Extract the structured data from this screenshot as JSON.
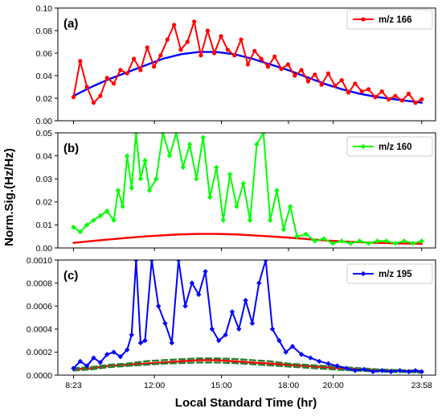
{
  "figure": {
    "xlabel": "Local Standard Time (hr)",
    "ylabel": "Norm.Sig.(Hz/Hz)",
    "x_ticks": [
      {
        "value": 0,
        "label": "8:23"
      },
      {
        "value": 3.62,
        "label": "12:00"
      },
      {
        "value": 6.62,
        "label": "15:00"
      },
      {
        "value": 9.62,
        "label": "18:00"
      },
      {
        "value": 11.62,
        "label": "20:00"
      },
      {
        "value": 15.58,
        "label": "23:58"
      }
    ],
    "xlim": [
      -0.7,
      16.2
    ]
  },
  "chart_data": [
    {
      "type": "line",
      "panel_label": "(a)",
      "ylim": [
        0,
        0.1
      ],
      "yticks": [
        "0.00",
        "0.02",
        "0.04",
        "0.06",
        "0.08",
        "0.10"
      ],
      "legend": "top-right",
      "grid": false,
      "series": [
        {
          "name": "m/z 166",
          "color": "#ff0000",
          "marker": "circle",
          "x": [
            0.0,
            0.3,
            0.6,
            0.9,
            1.2,
            1.5,
            1.8,
            2.1,
            2.4,
            2.7,
            3.0,
            3.3,
            3.6,
            3.9,
            4.2,
            4.5,
            4.8,
            5.1,
            5.4,
            5.7,
            6.0,
            6.3,
            6.6,
            6.9,
            7.2,
            7.5,
            7.8,
            8.1,
            8.4,
            8.7,
            9.0,
            9.3,
            9.6,
            9.9,
            10.2,
            10.5,
            10.8,
            11.1,
            11.4,
            11.7,
            12.0,
            12.3,
            12.6,
            12.9,
            13.2,
            13.5,
            13.8,
            14.1,
            14.4,
            14.7,
            15.0,
            15.3,
            15.58
          ],
          "values": [
            0.021,
            0.053,
            0.03,
            0.016,
            0.022,
            0.038,
            0.033,
            0.045,
            0.042,
            0.055,
            0.045,
            0.065,
            0.048,
            0.058,
            0.072,
            0.085,
            0.063,
            0.07,
            0.088,
            0.058,
            0.08,
            0.06,
            0.075,
            0.063,
            0.058,
            0.072,
            0.05,
            0.062,
            0.055,
            0.048,
            0.057,
            0.046,
            0.05,
            0.04,
            0.045,
            0.035,
            0.041,
            0.032,
            0.042,
            0.031,
            0.036,
            0.025,
            0.033,
            0.026,
            0.028,
            0.021,
            0.026,
            0.019,
            0.022,
            0.018,
            0.024,
            0.016,
            0.019
          ]
        },
        {
          "name": "",
          "color": "#0000ff",
          "style": "fit",
          "x": [
            0.0,
            0.8,
            1.6,
            2.4,
            3.2,
            4.0,
            4.8,
            5.6,
            6.4,
            7.2,
            8.0,
            8.8,
            9.6,
            10.4,
            11.2,
            12.0,
            12.8,
            13.6,
            14.4,
            15.2,
            15.58
          ],
          "values": [
            0.022,
            0.03,
            0.037,
            0.043,
            0.049,
            0.055,
            0.059,
            0.061,
            0.061,
            0.059,
            0.055,
            0.05,
            0.045,
            0.039,
            0.033,
            0.028,
            0.024,
            0.021,
            0.019,
            0.017,
            0.016
          ]
        }
      ]
    },
    {
      "type": "line",
      "panel_label": "(b)",
      "ylim": [
        0,
        0.05
      ],
      "yticks": [
        "0.00",
        "0.01",
        "0.02",
        "0.03",
        "0.04",
        "0.05"
      ],
      "legend": "top-right",
      "grid": false,
      "series": [
        {
          "name": "m/z 160",
          "color": "#00ff00",
          "marker": "diamond",
          "x": [
            0.0,
            0.3,
            0.6,
            0.9,
            1.2,
            1.5,
            1.8,
            2.0,
            2.2,
            2.4,
            2.6,
            2.8,
            3.0,
            3.2,
            3.4,
            3.7,
            4.0,
            4.3,
            4.6,
            4.9,
            5.2,
            5.5,
            5.8,
            6.1,
            6.4,
            6.7,
            7.0,
            7.3,
            7.6,
            7.9,
            8.2,
            8.5,
            8.8,
            9.1,
            9.4,
            9.7,
            10.0,
            10.4,
            10.8,
            11.2,
            11.6,
            12.0,
            12.4,
            12.8,
            13.2,
            13.6,
            14.0,
            14.4,
            14.8,
            15.2,
            15.58
          ],
          "values": [
            0.009,
            0.007,
            0.01,
            0.012,
            0.014,
            0.016,
            0.012,
            0.025,
            0.018,
            0.04,
            0.026,
            0.05,
            0.03,
            0.038,
            0.025,
            0.03,
            0.05,
            0.04,
            0.05,
            0.035,
            0.045,
            0.03,
            0.048,
            0.022,
            0.035,
            0.012,
            0.032,
            0.018,
            0.028,
            0.012,
            0.045,
            0.05,
            0.012,
            0.025,
            0.008,
            0.018,
            0.005,
            0.006,
            0.003,
            0.004,
            0.002,
            0.003,
            0.002,
            0.003,
            0.002,
            0.003,
            0.003,
            0.002,
            0.003,
            0.002,
            0.003
          ]
        },
        {
          "name": "",
          "color": "#ff0000",
          "style": "fit",
          "x": [
            0.0,
            0.8,
            1.6,
            2.4,
            3.2,
            4.0,
            4.8,
            5.6,
            6.4,
            7.2,
            8.0,
            8.8,
            9.6,
            10.4,
            11.2,
            12.0,
            12.8,
            13.6,
            14.4,
            15.2,
            15.58
          ],
          "values": [
            0.0022,
            0.003,
            0.0037,
            0.0044,
            0.005,
            0.0055,
            0.0059,
            0.0061,
            0.0061,
            0.0059,
            0.0055,
            0.005,
            0.0045,
            0.0039,
            0.0033,
            0.0028,
            0.0025,
            0.0022,
            0.002,
            0.0019,
            0.0018
          ]
        }
      ]
    },
    {
      "type": "line",
      "panel_label": "(c)",
      "ylim": [
        0,
        0.001
      ],
      "yticks": [
        "0.0000",
        "0.0002",
        "0.0004",
        "0.0006",
        "0.0008",
        "0.0010"
      ],
      "legend": "top-right",
      "grid": false,
      "series": [
        {
          "name": "m/z 195",
          "color": "#0000ff",
          "marker": "diamond",
          "x": [
            0.0,
            0.3,
            0.6,
            0.9,
            1.2,
            1.5,
            1.8,
            2.1,
            2.4,
            2.6,
            2.8,
            3.0,
            3.2,
            3.5,
            3.8,
            4.1,
            4.4,
            4.7,
            5.0,
            5.3,
            5.6,
            5.9,
            6.2,
            6.5,
            6.8,
            7.1,
            7.4,
            7.7,
            8.0,
            8.3,
            8.6,
            8.9,
            9.2,
            9.5,
            9.8,
            10.2,
            10.6,
            11.0,
            11.4,
            11.8,
            12.2,
            12.6,
            13.0,
            13.4,
            13.8,
            14.2,
            14.6,
            15.0,
            15.3,
            15.58
          ],
          "values": [
            6e-05,
            0.00012,
            8e-05,
            0.00015,
            0.00011,
            0.00018,
            0.0002,
            0.00016,
            0.00022,
            0.00035,
            0.001,
            0.00028,
            0.0003,
            0.001,
            0.0006,
            0.00045,
            0.00028,
            0.001,
            0.0006,
            0.0008,
            0.0007,
            0.0009,
            0.0004,
            0.0003,
            0.00035,
            0.00055,
            0.0004,
            0.00065,
            0.00045,
            0.0008,
            0.001,
            0.0004,
            0.0003,
            0.0002,
            0.00025,
            0.00018,
            0.00015,
            0.00012,
            0.0001,
            8e-05,
            6e-05,
            4e-05,
            5e-05,
            3e-05,
            4e-05,
            3e-05,
            4e-05,
            3e-05,
            4e-05,
            3e-05
          ]
        },
        {
          "name": "",
          "color": "#ff0000",
          "style": "fit",
          "x": [
            0.0,
            0.8,
            1.6,
            2.4,
            3.2,
            4.0,
            4.8,
            5.6,
            6.4,
            7.2,
            8.0,
            8.8,
            9.6,
            10.4,
            11.2,
            12.0,
            12.8,
            13.6,
            14.4,
            15.2,
            15.58
          ],
          "values": [
            5e-05,
            6e-05,
            8e-05,
            9e-05,
            0.0001,
            0.00011,
            0.00012,
            0.00013,
            0.00013,
            0.00012,
            0.00011,
            0.0001,
            9e-05,
            8e-05,
            7e-05,
            6e-05,
            5e-05,
            4.5e-05,
            4e-05,
            3.5e-05,
            3e-05
          ]
        },
        {
          "name": "",
          "color": "#2e7d32",
          "style": "dashed",
          "x": [
            0.0,
            0.8,
            1.6,
            2.4,
            3.2,
            4.0,
            4.8,
            5.6,
            6.4,
            7.2,
            8.0,
            8.8,
            9.6,
            10.4,
            11.2,
            12.0,
            12.8,
            13.6,
            14.4,
            15.2,
            15.58
          ],
          "values": [
            6e-05,
            7e-05,
            9e-05,
            0.0001,
            0.00012,
            0.00013,
            0.000138,
            0.000145,
            0.000145,
            0.00014,
            0.00013,
            0.00012,
            0.0001,
            9e-05,
            8e-05,
            7e-05,
            6e-05,
            5e-05,
            4.5e-05,
            4e-05,
            3.5e-05
          ]
        },
        {
          "name": "",
          "color": "#2e7d32",
          "style": "dashed",
          "x": [
            0.0,
            0.8,
            1.6,
            2.4,
            3.2,
            4.0,
            4.8,
            5.6,
            6.4,
            7.2,
            8.0,
            8.8,
            9.6,
            10.4,
            11.2,
            12.0,
            12.8,
            13.6,
            14.4,
            15.2,
            15.58
          ],
          "values": [
            4e-05,
            5e-05,
            7e-05,
            8e-05,
            9e-05,
            0.0001,
            0.000105,
            0.00011,
            0.00011,
            0.000105,
            9.5e-05,
            8.5e-05,
            7.5e-05,
            6.5e-05,
            5.5e-05,
            4.5e-05,
            3.8e-05,
            3.2e-05,
            2.8e-05,
            2.5e-05,
            2.2e-05
          ]
        }
      ]
    }
  ]
}
